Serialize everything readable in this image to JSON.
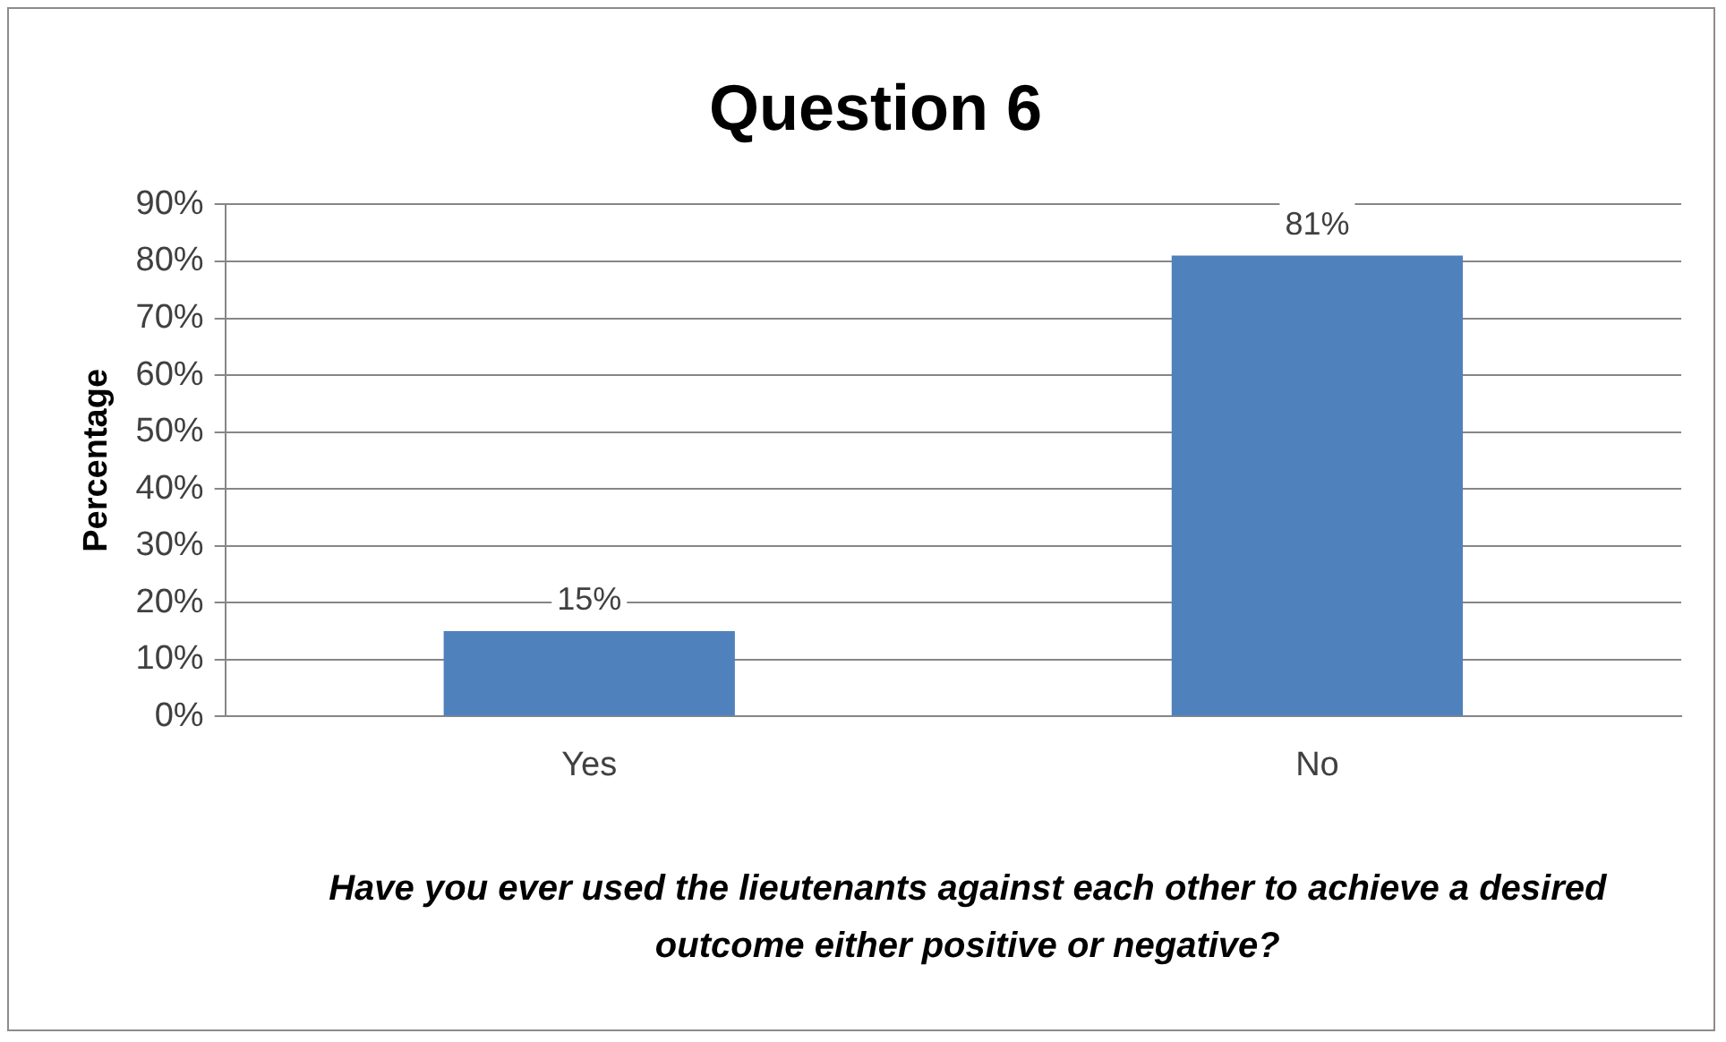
{
  "chart_data": {
    "type": "bar",
    "title": "Question 6",
    "ylabel": "Percentage",
    "xlabel": "Have you ever used the lieutenants against each other to achieve a desired outcome either positive or negative?",
    "categories": [
      "Yes",
      "No"
    ],
    "values": [
      15,
      81
    ],
    "value_labels": [
      "15%",
      "81%"
    ],
    "color": "#4f81bd",
    "ylim": [
      0,
      90
    ],
    "yticks": [
      {
        "value": 0,
        "label": "0%"
      },
      {
        "value": 10,
        "label": "10%"
      },
      {
        "value": 20,
        "label": "20%"
      },
      {
        "value": 30,
        "label": "30%"
      },
      {
        "value": 40,
        "label": "40%"
      },
      {
        "value": 50,
        "label": "50%"
      },
      {
        "value": 60,
        "label": "60%"
      },
      {
        "value": 70,
        "label": "70%"
      },
      {
        "value": 80,
        "label": "80%"
      },
      {
        "value": 90,
        "label": "90%"
      }
    ],
    "grid": "y",
    "legend": false
  }
}
